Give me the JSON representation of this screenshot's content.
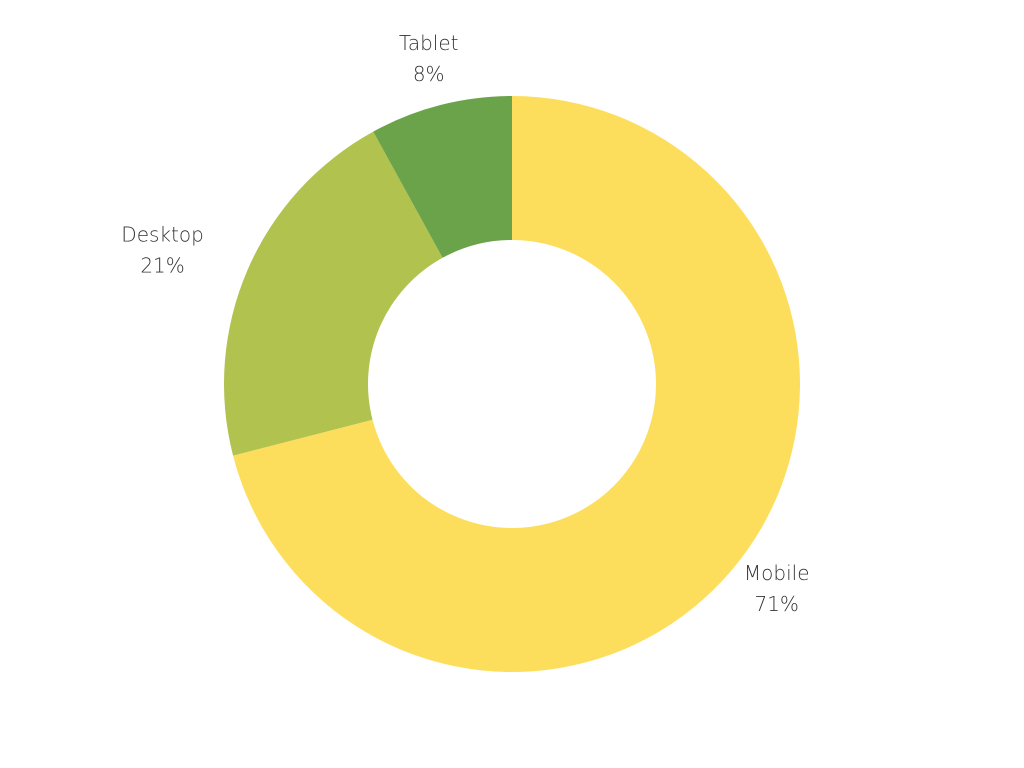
{
  "chart_data": {
    "type": "donut",
    "categories": [
      "Mobile",
      "Desktop",
      "Tablet"
    ],
    "values": [
      71,
      21,
      8
    ],
    "value_labels": [
      "71%",
      "21%",
      "8%"
    ],
    "colors": [
      "#fdde5c",
      "#b1c24e",
      "#6ba34a"
    ]
  }
}
